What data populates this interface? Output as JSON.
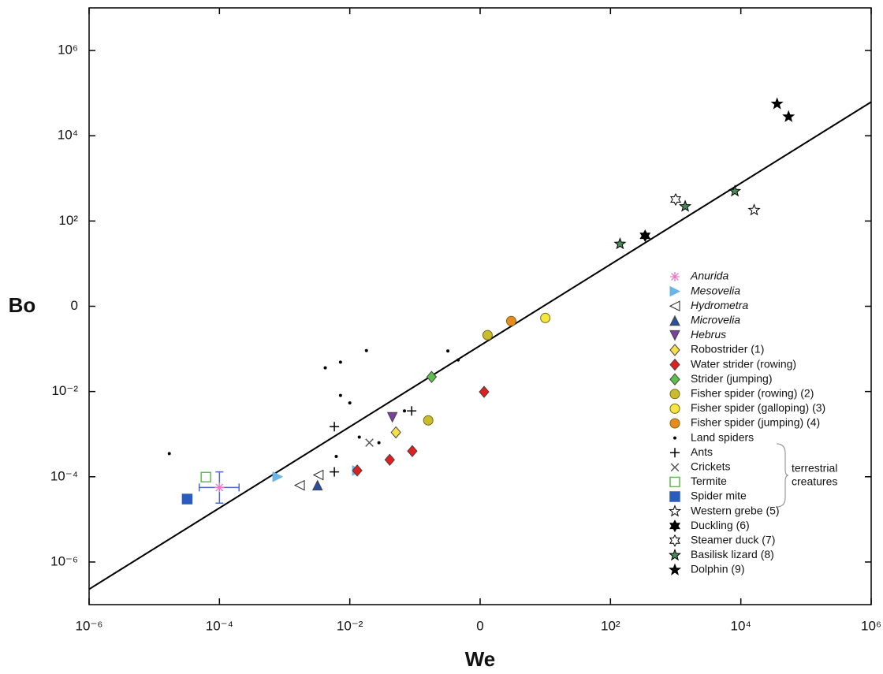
{
  "chart_data": {
    "type": "scatter",
    "xscale": "log",
    "yscale": "log",
    "xlabel": "We",
    "ylabel": "Bo",
    "xlim": [
      1e-06,
      1000000
    ],
    "ylim": [
      1e-07,
      10000000
    ],
    "xticks": [
      {
        "value": 1e-06,
        "label": "10⁻⁶"
      },
      {
        "value": 0.0001,
        "label": "10⁻⁴"
      },
      {
        "value": 0.01,
        "label": "10⁻²"
      },
      {
        "value": 1,
        "label": "0"
      },
      {
        "value": 100,
        "label": "10²"
      },
      {
        "value": 10000,
        "label": "10⁴"
      },
      {
        "value": 1000000,
        "label": "10⁶"
      }
    ],
    "yticks": [
      {
        "value": 1e-06,
        "label": "10⁻⁶"
      },
      {
        "value": 0.0001,
        "label": "10⁻⁴"
      },
      {
        "value": 0.01,
        "label": "10⁻²"
      },
      {
        "value": 1,
        "label": "0"
      },
      {
        "value": 100,
        "label": "10²"
      },
      {
        "value": 10000,
        "label": "10⁴"
      },
      {
        "value": 1000000,
        "label": "10⁶"
      }
    ],
    "grid": false,
    "fit_line": {
      "x": [
        1e-06,
        1000000
      ],
      "y": [
        2.3e-07,
        62000
      ],
      "color": "#000000"
    },
    "series": [
      {
        "name": "Anurida",
        "italic": true,
        "color": "#e87ac8",
        "marker": "asterisk",
        "filled": true,
        "x": [
          0.0001
        ],
        "values": [
          5.6e-05
        ],
        "x_range": [
          4.9e-05,
          0.0002
        ],
        "y_range": [
          2.4e-05,
          0.00013
        ],
        "error_color": "#4a6ac8"
      },
      {
        "name": "Mesovelia",
        "italic": true,
        "color": "#6ab4e8",
        "marker": "triangle-right",
        "filled": true,
        "x": [
          0.00078,
          0.013
        ],
        "values": [
          0.0001,
          0.00014
        ]
      },
      {
        "name": "Hydrometra",
        "italic": true,
        "color": "#222222",
        "marker": "triangle-left",
        "filled": false,
        "x": [
          0.0017,
          0.0033
        ],
        "values": [
          6.3e-05,
          0.00011
        ]
      },
      {
        "name": "Microvelia",
        "italic": true,
        "color": "#2a4ea0",
        "marker": "triangle-up",
        "filled": true,
        "x": [
          0.0032
        ],
        "values": [
          6.3e-05
        ]
      },
      {
        "name": "Hebrus",
        "italic": true,
        "color": "#7b3fa0",
        "marker": "triangle-down",
        "filled": true,
        "x": [
          0.045
        ],
        "values": [
          0.0025
        ]
      },
      {
        "name": "Robostrider (1)",
        "color": "#f5e04a",
        "marker": "diamond",
        "filled": true,
        "x": [
          0.051
        ],
        "values": [
          0.0011
        ]
      },
      {
        "name": "Water strider (rowing)",
        "color": "#e02020",
        "marker": "diamond",
        "filled": true,
        "x": [
          1.15,
          0.091,
          0.041,
          0.013
        ],
        "values": [
          0.0098,
          0.0004,
          0.00025,
          0.00014
        ]
      },
      {
        "name": "Strider (jumping)",
        "color": "#5cc04a",
        "marker": "diamond",
        "filled": true,
        "x": [
          0.18
        ],
        "values": [
          0.022
        ]
      },
      {
        "name": "Fisher spider (rowing) (2)",
        "color": "#c8bc30",
        "marker": "circle",
        "filled": true,
        "x": [
          0.16,
          1.3
        ],
        "values": [
          0.0021,
          0.21
        ]
      },
      {
        "name": "Fisher spider (galloping) (3)",
        "color": "#f5e640",
        "marker": "circle",
        "filled": true,
        "x": [
          10
        ],
        "values": [
          0.53
        ]
      },
      {
        "name": "Fisher spider (jumping) (4)",
        "color": "#e88a20",
        "marker": "circle",
        "filled": true,
        "x": [
          3
        ],
        "values": [
          0.45
        ]
      },
      {
        "name": "Land spiders",
        "color": "#000000",
        "marker": "dot",
        "filled": true,
        "x": [
          1.7e-05,
          0.0042,
          0.0072,
          0.018,
          0.32,
          0.46,
          0.0072,
          0.01,
          0.028,
          0.014,
          0.0062,
          0.069
        ],
        "values": [
          0.00035,
          0.036,
          0.049,
          0.091,
          0.089,
          0.055,
          0.0081,
          0.0054,
          0.00063,
          0.00085,
          0.0003,
          0.0035
        ]
      },
      {
        "name": "Ants",
        "color": "#000000",
        "marker": "plus",
        "filled": true,
        "x": [
          0.0058,
          0.089,
          0.0058
        ],
        "values": [
          0.0015,
          0.0035,
          0.00013
        ]
      },
      {
        "name": "Crickets",
        "color": "#555555",
        "marker": "x",
        "filled": true,
        "x": [
          0.02
        ],
        "values": [
          0.00063
        ]
      },
      {
        "name": "Termite",
        "color": "#5cc04a",
        "marker": "square",
        "filled": false,
        "x": [
          6.2e-05
        ],
        "values": [
          9.8e-05
        ]
      },
      {
        "name": "Spider mite",
        "color": "#2a5cc0",
        "marker": "square",
        "filled": true,
        "x": [
          3.2e-05
        ],
        "values": [
          3e-05
        ]
      },
      {
        "name": "Western grebe (5)",
        "color": "#000000",
        "marker": "star5",
        "filled": false,
        "x": [
          16000
        ],
        "values": [
          180
        ]
      },
      {
        "name": "Duckling (6)",
        "color": "#000000",
        "marker": "star6",
        "filled": true,
        "x": [
          340
        ],
        "values": [
          45
        ]
      },
      {
        "name": "Steamer duck (7)",
        "color": "#000000",
        "marker": "star6",
        "filled": false,
        "x": [
          1000
        ],
        "values": [
          320
        ]
      },
      {
        "name": "Basilisk lizard (8)",
        "color": "#4a8a5a",
        "marker": "star5",
        "filled": true,
        "x": [
          140,
          1400,
          8100
        ],
        "values": [
          29,
          220,
          500
        ]
      },
      {
        "name": "Dolphin (9)",
        "color": "#000000",
        "marker": "star5",
        "filled": true,
        "x": [
          36000,
          54000
        ],
        "values": [
          56000,
          28000
        ]
      }
    ],
    "annotations": [
      "terrestrial",
      "creatures"
    ]
  }
}
